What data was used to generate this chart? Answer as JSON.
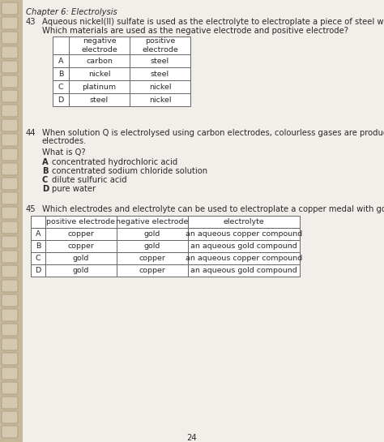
{
  "chapter_title": "Chapter 6: Electrolysis",
  "page_bg": "#f2eeea",
  "spine_color": "#c8b89a",
  "text_color": "#2a2a2a",
  "page_number": "24",
  "q43_number": "43",
  "q43_text": "Aqueous nickel(II) sulfate is used as the electrolyte to electroplate a piece of steel with nickel.",
  "q43_sub": "Which materials are used as the negative electrode and positive electrode?",
  "q43_table_headers": [
    "",
    "negative\nelectrode",
    "positive\nelectrode"
  ],
  "q43_table_rows": [
    [
      "A",
      "carbon",
      "steel"
    ],
    [
      "B",
      "nickel",
      "steel"
    ],
    [
      "C",
      "platinum",
      "nickel"
    ],
    [
      "D",
      "steel",
      "nickel"
    ]
  ],
  "q44_number": "44",
  "q44_line1": "When solution Q is electrolysed using carbon electrodes, colourless gases are produced at both",
  "q44_line2": "electrodes.",
  "q44_sub": "What is Q?",
  "q44_options": [
    [
      "A",
      "concentrated hydrochloric acid"
    ],
    [
      "B",
      "concentrated sodium chloride solution"
    ],
    [
      "C",
      "dilute sulfuric acid"
    ],
    [
      "D",
      "pure water"
    ]
  ],
  "q45_number": "45",
  "q45_text": "Which electrodes and electrolyte can be used to electroplate a copper medal with gold?",
  "q45_table_headers": [
    "",
    "positive electrode",
    "negative electrode",
    "electrolyte"
  ],
  "q45_table_rows": [
    [
      "A",
      "copper",
      "gold",
      "an aqueous copper compound"
    ],
    [
      "B",
      "copper",
      "gold",
      "an aqueous gold compound"
    ],
    [
      "C",
      "gold",
      "copper",
      "an aqueous copper compound"
    ],
    [
      "D",
      "gold",
      "copper",
      "an aqueous gold compound"
    ]
  ]
}
